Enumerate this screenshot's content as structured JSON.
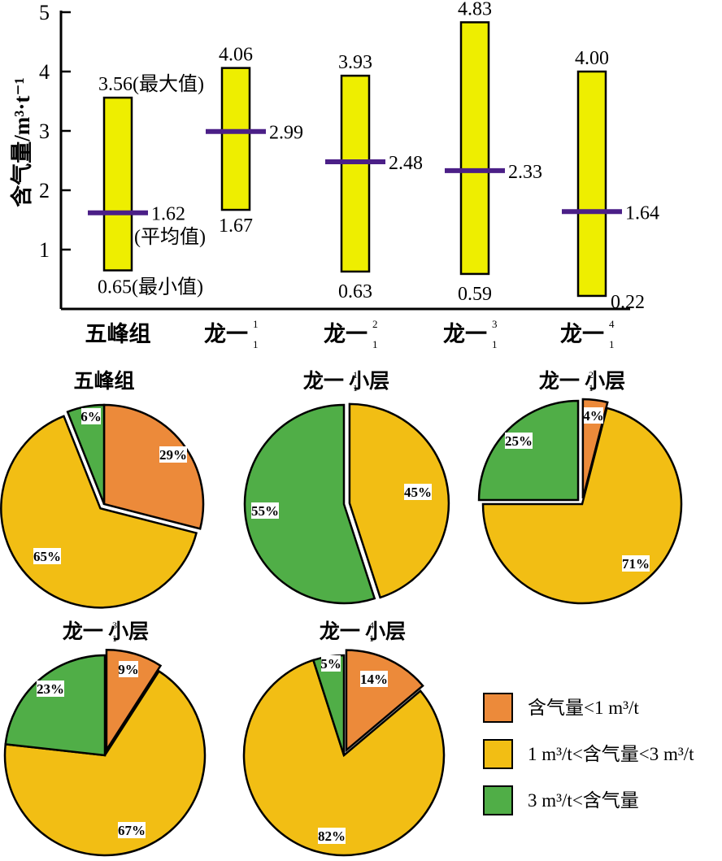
{
  "colors": {
    "bar_fill": "#EEEE00",
    "avg_line": "#4B1F87",
    "slice_lt1": "#EC8A3A",
    "slice_1to3": "#F2BE14",
    "slice_gt3": "#50AE47"
  },
  "chart_data": [
    {
      "type": "range-bar",
      "ylabel": "含气量/m³·t⁻¹",
      "ylim": [
        0,
        5
      ],
      "yticks": [
        "1",
        "2",
        "3",
        "4",
        "5"
      ],
      "categories": [
        {
          "name": "五峰组",
          "sup": "",
          "sub": ""
        },
        {
          "name": "龙一",
          "sup": "1",
          "sub": "1"
        },
        {
          "name": "龙一",
          "sup": "2",
          "sub": "1"
        },
        {
          "name": "龙一",
          "sup": "3",
          "sub": "1"
        },
        {
          "name": "龙一",
          "sup": "4",
          "sub": "1"
        }
      ],
      "max": [
        3.56,
        4.06,
        3.93,
        4.83,
        4.0
      ],
      "avg": [
        1.62,
        2.99,
        2.48,
        2.33,
        1.64
      ],
      "min": [
        0.65,
        1.67,
        0.63,
        0.59,
        0.22
      ],
      "max_labels": [
        "3.56(最大值)",
        "4.06",
        "3.93",
        "4.83",
        "4.00"
      ],
      "avg_labels": [
        "1.62",
        "2.99",
        "2.48",
        "2.33",
        "1.64"
      ],
      "avg_note": "(平均值)",
      "min_labels": [
        "0.65(最小值)",
        "1.67",
        "0.63",
        "0.59",
        "0.22"
      ]
    },
    {
      "type": "pie",
      "legend": [
        "含气量<1 m³/t",
        "1 m³/t<含气量<3 m³/t",
        "3 m³/t<含气量"
      ],
      "pies": [
        {
          "title": "五峰组",
          "sup": "",
          "sub": "",
          "suffix": "",
          "values": [
            29,
            65,
            6
          ],
          "labels": [
            "29%",
            "65%",
            "6%"
          ]
        },
        {
          "title": "龙一",
          "sup": "1",
          "sub": "1",
          "suffix": "小层",
          "values": [
            0,
            45,
            55
          ],
          "labels": [
            "",
            "45%",
            "55%"
          ]
        },
        {
          "title": "龙一",
          "sup": "2",
          "sub": "1",
          "suffix": "小层",
          "values": [
            4,
            71,
            25
          ],
          "labels": [
            "4%",
            "71%",
            "25%"
          ]
        },
        {
          "title": "龙一",
          "sup": "3",
          "sub": "1",
          "suffix": "小层",
          "values": [
            9,
            67,
            23
          ],
          "labels": [
            "9%",
            "67%",
            "23%"
          ]
        },
        {
          "title": "龙一",
          "sup": "4",
          "sub": "1",
          "suffix": "小层",
          "values": [
            14,
            82,
            5
          ],
          "labels": [
            "14%",
            "82%",
            "5%"
          ]
        }
      ]
    }
  ]
}
